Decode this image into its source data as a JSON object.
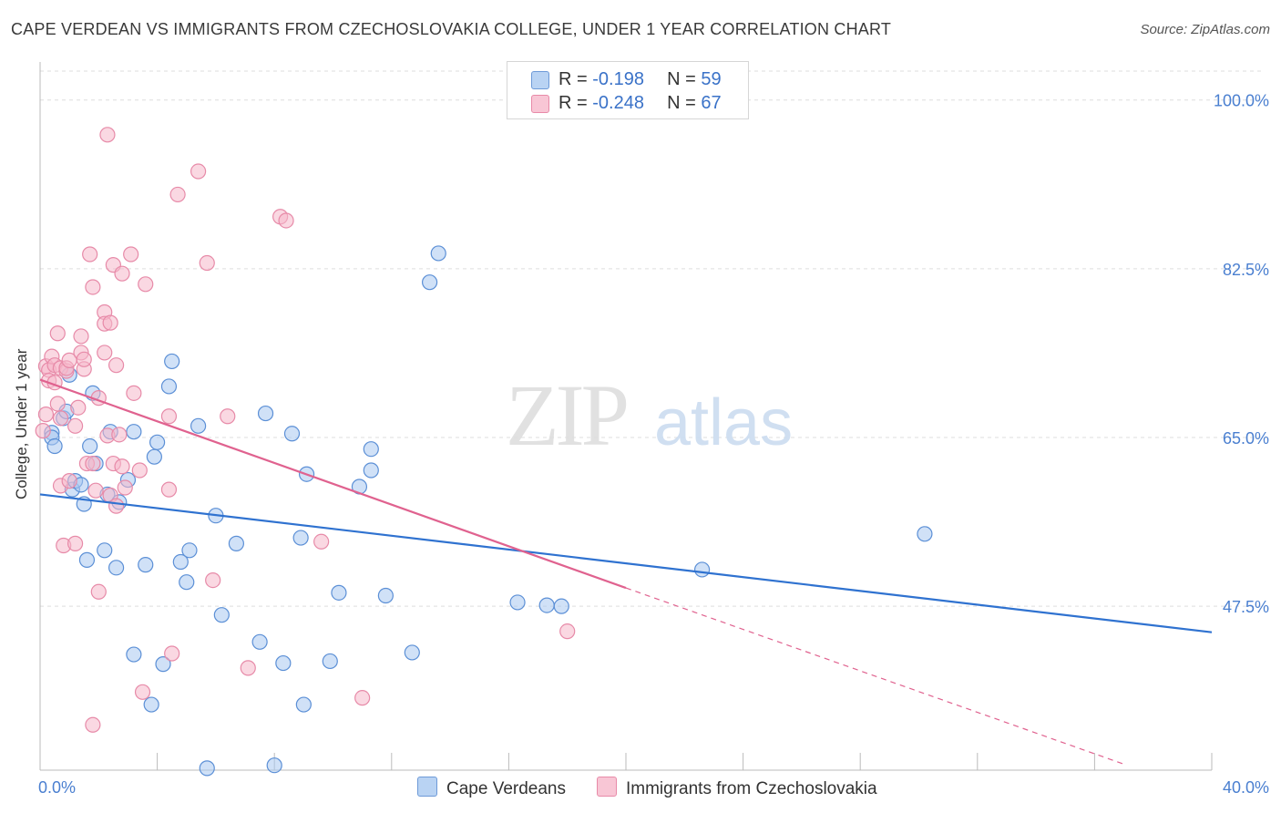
{
  "title": "CAPE VERDEAN VS IMMIGRANTS FROM CZECHOSLOVAKIA COLLEGE, UNDER 1 YEAR CORRELATION CHART",
  "source": "Source: ZipAtlas.com",
  "watermark": {
    "zip": "ZIP",
    "atlas": "atlas"
  },
  "legend": {
    "rows": [
      {
        "r_label": "R = ",
        "r_value": "-0.198",
        "n_label": "N = ",
        "n_value": "59"
      },
      {
        "r_label": "R = ",
        "r_value": "-0.248",
        "n_label": "N = ",
        "n_value": "67"
      }
    ]
  },
  "bottom_legend": [
    "Cape Verdeans",
    "Immigrants from Czechoslovakia"
  ],
  "colors": {
    "blue_fill": "#a9c8f0",
    "blue_stroke": "#5b8fd6",
    "blue_line": "#2f72d0",
    "pink_fill": "#f5b8cb",
    "pink_stroke": "#e78aa8",
    "pink_line": "#e0628f",
    "grid": "#dddddd",
    "tick_label": "#4a7fd0"
  },
  "chart_data": {
    "type": "scatter",
    "title": "CAPE VERDEAN VS IMMIGRANTS FROM CZECHOSLOVAKIA COLLEGE, UNDER 1 YEAR CORRELATION CHART",
    "xlabel": "",
    "ylabel": "College, Under 1 year",
    "xlim": [
      0,
      40
    ],
    "ylim": [
      30.5,
      103
    ],
    "x_tick_labels": [
      "0.0%",
      "40.0%"
    ],
    "y_ticks": [
      47.5,
      65.0,
      82.5,
      100.0
    ],
    "y_tick_labels": [
      "47.5%",
      "65.0%",
      "82.5%",
      "100.0%"
    ],
    "series": [
      {
        "name": "Cape Verdeans",
        "r": -0.198,
        "n": 59,
        "trend": {
          "x": [
            0,
            40
          ],
          "y": [
            59.1,
            44.8
          ],
          "dashed_from": null
        },
        "points": [
          [
            0.4,
            65.5
          ],
          [
            0.4,
            65.0
          ],
          [
            0.5,
            64.1
          ],
          [
            0.8,
            67.0
          ],
          [
            0.9,
            67.7
          ],
          [
            1.1,
            59.6
          ],
          [
            1.0,
            71.5
          ],
          [
            1.2,
            60.5
          ],
          [
            1.4,
            60.1
          ],
          [
            1.5,
            58.1
          ],
          [
            1.6,
            52.3
          ],
          [
            1.7,
            64.1
          ],
          [
            1.8,
            69.6
          ],
          [
            1.9,
            62.3
          ],
          [
            2.2,
            53.3
          ],
          [
            2.3,
            59.1
          ],
          [
            2.4,
            65.6
          ],
          [
            2.6,
            51.5
          ],
          [
            2.7,
            58.3
          ],
          [
            3.0,
            60.6
          ],
          [
            3.2,
            65.6
          ],
          [
            3.2,
            42.5
          ],
          [
            3.6,
            51.8
          ],
          [
            3.8,
            37.3
          ],
          [
            3.9,
            63.0
          ],
          [
            4.0,
            64.5
          ],
          [
            4.2,
            41.5
          ],
          [
            4.4,
            70.3
          ],
          [
            4.5,
            72.9
          ],
          [
            4.8,
            52.1
          ],
          [
            5.0,
            50.0
          ],
          [
            5.1,
            53.3
          ],
          [
            5.4,
            66.2
          ],
          [
            5.7,
            30.7
          ],
          [
            6.0,
            56.9
          ],
          [
            6.2,
            46.6
          ],
          [
            6.7,
            54.0
          ],
          [
            7.5,
            43.8
          ],
          [
            7.7,
            67.5
          ],
          [
            8.0,
            31.0
          ],
          [
            8.3,
            41.6
          ],
          [
            8.6,
            65.4
          ],
          [
            8.9,
            54.6
          ],
          [
            9.1,
            61.2
          ],
          [
            9.0,
            37.3
          ],
          [
            9.9,
            41.8
          ],
          [
            10.2,
            48.9
          ],
          [
            10.9,
            59.9
          ],
          [
            11.3,
            61.6
          ],
          [
            11.3,
            63.8
          ],
          [
            11.8,
            48.6
          ],
          [
            12.7,
            42.7
          ],
          [
            13.3,
            81.1
          ],
          [
            13.6,
            84.1
          ],
          [
            16.3,
            47.9
          ],
          [
            17.3,
            47.6
          ],
          [
            17.8,
            47.5
          ],
          [
            22.6,
            51.3
          ],
          [
            30.2,
            55.0
          ]
        ]
      },
      {
        "name": "Immigrants from Czechoslovakia",
        "r": -0.248,
        "n": 67,
        "trend": {
          "x": [
            0,
            20.0,
            40
          ],
          "y": [
            71.0,
            49.4,
            27.9
          ],
          "dashed_from": 20.0
        },
        "points": [
          [
            0.2,
            72.4
          ],
          [
            0.2,
            67.4
          ],
          [
            0.3,
            72.0
          ],
          [
            0.3,
            70.9
          ],
          [
            0.4,
            73.4
          ],
          [
            0.5,
            72.5
          ],
          [
            0.5,
            70.7
          ],
          [
            0.6,
            68.5
          ],
          [
            0.6,
            75.8
          ],
          [
            0.7,
            67.0
          ],
          [
            0.7,
            72.2
          ],
          [
            0.7,
            60.0
          ],
          [
            0.8,
            53.8
          ],
          [
            0.9,
            71.9
          ],
          [
            0.9,
            72.2
          ],
          [
            1.0,
            73.0
          ],
          [
            1.0,
            60.5
          ],
          [
            1.2,
            54.0
          ],
          [
            1.2,
            66.2
          ],
          [
            1.3,
            68.1
          ],
          [
            1.4,
            73.8
          ],
          [
            1.4,
            75.5
          ],
          [
            1.5,
            72.1
          ],
          [
            1.5,
            73.1
          ],
          [
            1.6,
            62.3
          ],
          [
            1.7,
            84.0
          ],
          [
            1.8,
            62.3
          ],
          [
            1.8,
            80.6
          ],
          [
            1.8,
            35.2
          ],
          [
            1.9,
            59.5
          ],
          [
            2.0,
            49.0
          ],
          [
            2.0,
            69.1
          ],
          [
            2.2,
            78.0
          ],
          [
            2.2,
            76.8
          ],
          [
            2.2,
            73.8
          ],
          [
            2.3,
            96.4
          ],
          [
            2.3,
            65.2
          ],
          [
            2.4,
            59.0
          ],
          [
            2.4,
            76.9
          ],
          [
            2.5,
            82.9
          ],
          [
            2.5,
            62.3
          ],
          [
            2.6,
            72.5
          ],
          [
            2.6,
            57.9
          ],
          [
            2.7,
            65.3
          ],
          [
            2.8,
            82.0
          ],
          [
            2.8,
            62.0
          ],
          [
            2.9,
            59.8
          ],
          [
            3.1,
            84.0
          ],
          [
            3.2,
            69.6
          ],
          [
            3.4,
            61.6
          ],
          [
            3.5,
            38.6
          ],
          [
            3.6,
            80.9
          ],
          [
            4.4,
            67.2
          ],
          [
            4.4,
            59.6
          ],
          [
            4.5,
            42.6
          ],
          [
            4.7,
            90.2
          ],
          [
            5.4,
            92.6
          ],
          [
            5.7,
            83.1
          ],
          [
            5.9,
            50.2
          ],
          [
            6.4,
            67.2
          ],
          [
            7.1,
            41.1
          ],
          [
            8.2,
            87.9
          ],
          [
            8.4,
            87.5
          ],
          [
            9.6,
            54.2
          ],
          [
            11.0,
            38.0
          ],
          [
            18.0,
            44.9
          ],
          [
            0.1,
            65.7
          ]
        ]
      }
    ]
  }
}
